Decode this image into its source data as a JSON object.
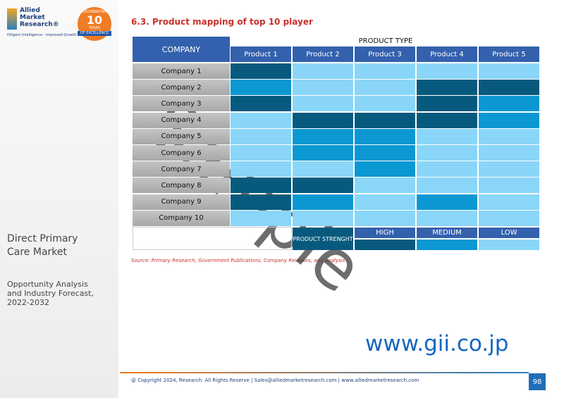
{
  "logo": {
    "name_lines": [
      "Allied",
      "Market",
      "Research®"
    ],
    "tagline": "Diligent Intelligence - Improved Growth",
    "badge": {
      "top": "CELEBRATING",
      "number": "10",
      "years": "YEARS",
      "bottom": "OF EXCELLENCE"
    }
  },
  "sidebar": {
    "report_title": "Direct Primary Care Market",
    "report_subtitle": "Opportunity Analysis and Industry Forecast, 2022-2032"
  },
  "header": {
    "title": "6.3. Product mapping of top 10 player"
  },
  "table": {
    "company_header": "COMPANY",
    "group_header": "PRODUCT TYPE",
    "columns": [
      "Product 1",
      "Product 2",
      "Product 3",
      "Product 4",
      "Product 5"
    ],
    "rows": [
      {
        "company": "Company 1",
        "levels": [
          0,
          2,
          2,
          2,
          2
        ]
      },
      {
        "company": "Company 2",
        "levels": [
          1,
          2,
          2,
          0,
          0
        ]
      },
      {
        "company": "Company 3",
        "levels": [
          0,
          2,
          2,
          0,
          1
        ]
      },
      {
        "company": "Company 4",
        "levels": [
          2,
          0,
          0,
          0,
          1
        ]
      },
      {
        "company": "Company 5",
        "levels": [
          2,
          1,
          1,
          2,
          2
        ]
      },
      {
        "company": "Company 6",
        "levels": [
          2,
          1,
          1,
          2,
          2
        ]
      },
      {
        "company": "Company 7",
        "levels": [
          2,
          2,
          1,
          2,
          2
        ]
      },
      {
        "company": "Company 8",
        "levels": [
          0,
          0,
          2,
          2,
          2
        ]
      },
      {
        "company": "Company 9",
        "levels": [
          0,
          1,
          2,
          1,
          2
        ]
      },
      {
        "company": "Company 10",
        "levels": [
          2,
          2,
          2,
          2,
          2
        ]
      }
    ],
    "legend": {
      "title": "PRODUCT STRENGHT",
      "levels": [
        {
          "label": "HIGH",
          "color": "#075a7e"
        },
        {
          "label": "MEDIUM",
          "color": "#0b98d2"
        },
        {
          "label": "LOW",
          "color": "#8ad6f8"
        }
      ]
    }
  },
  "source": "Source: Primary Research, Government Publications, Company Releases, and Analysis",
  "footer": {
    "text": "@ Copyright 2024, Research. All Rights Reserve | Sales@alliedmarketresearch.com | www.alliedmarketresearch.com",
    "page": "98"
  },
  "watermark": {
    "sample": "Sample",
    "site": "www.gii.co.jp"
  }
}
